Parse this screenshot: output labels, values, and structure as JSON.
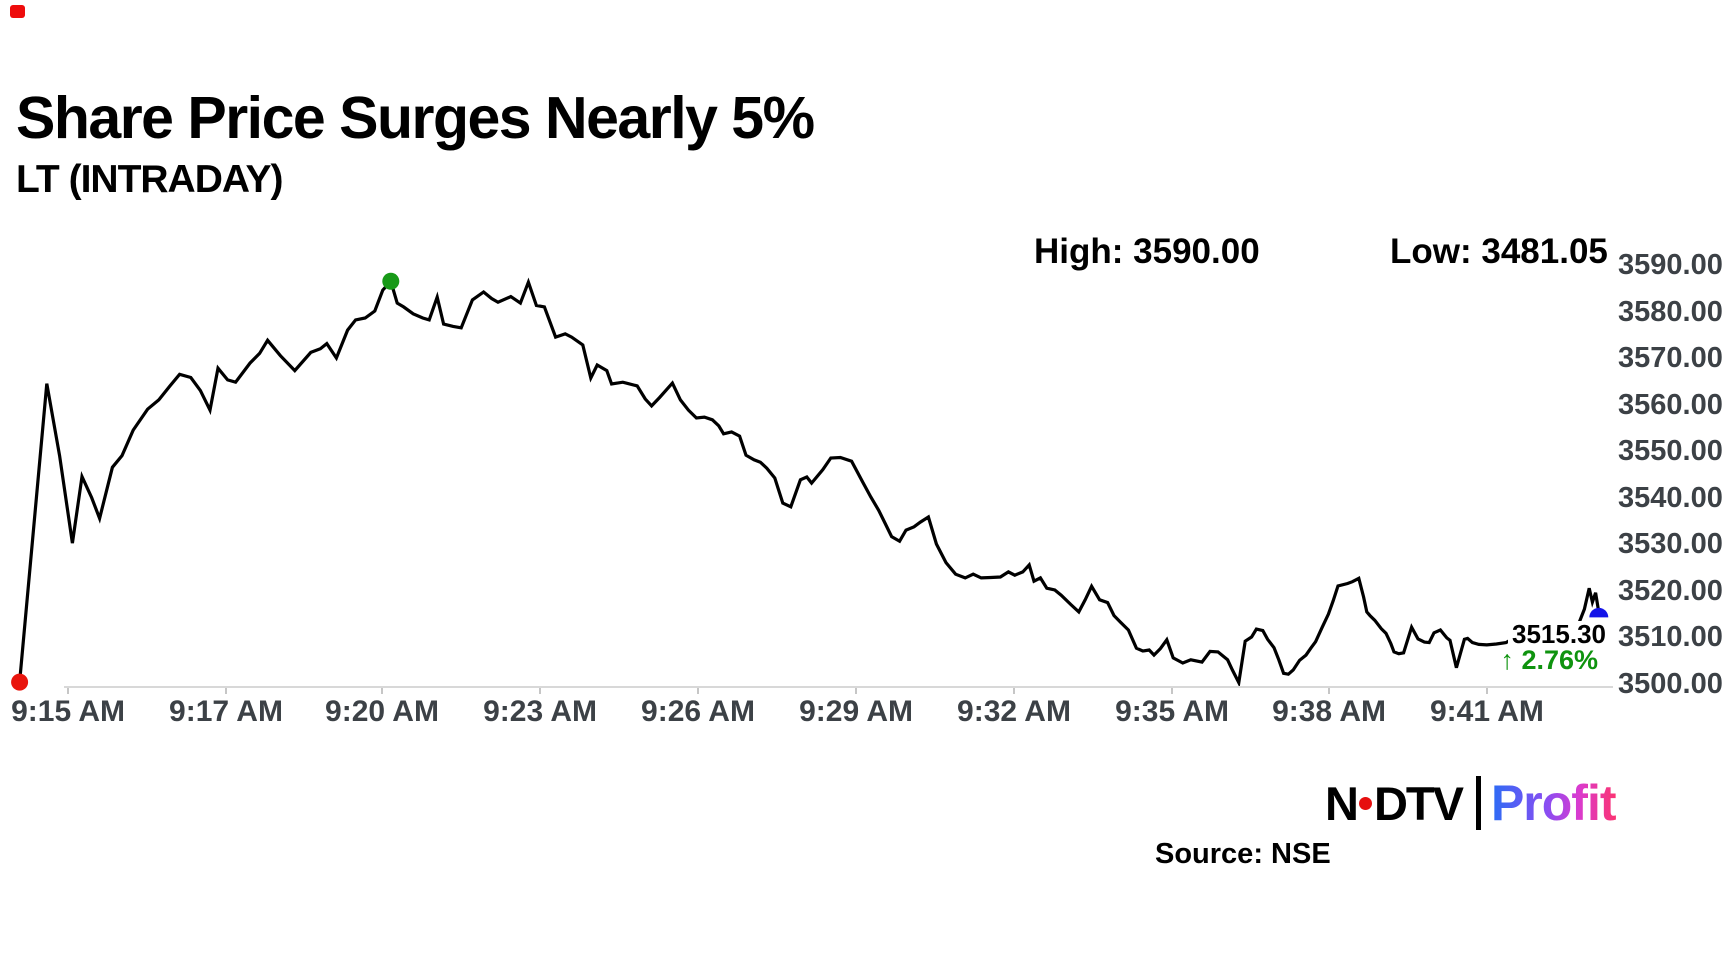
{
  "title": "Share Price Surges Nearly 5%",
  "subtitle": "LT (INTRADAY)",
  "stats": {
    "high_label": "High: 3590.00",
    "low_label": "Low: 3481.05"
  },
  "colors": {
    "line": "#000000",
    "axis_text": "#3c4146",
    "axis_line": "#d8d8d8",
    "marker_red": "#e9150d",
    "marker_green": "#189a18",
    "marker_blue": "#1414e8",
    "change_green": "#0f930f",
    "corner_red": "#ee0c0c",
    "profit_gradient": [
      "#2b6cf5",
      "#8a4df2",
      "#d93bd0",
      "#fb3472"
    ]
  },
  "chart_data": {
    "type": "line",
    "title": "LT intraday share price",
    "xlabel": "",
    "ylabel": "",
    "grid": false,
    "legend": false,
    "y_axis": {
      "min": 3500,
      "max": 3590,
      "ticks": [
        3590,
        3580,
        3570,
        3560,
        3550,
        3540,
        3530,
        3520,
        3510,
        3500
      ],
      "tick_format": "0.00",
      "position": "right"
    },
    "x_axis": {
      "ticks": [
        {
          "label": "9:15 AM",
          "pos": 0.0363
        },
        {
          "label": "9:17 AM",
          "pos": 0.135
        },
        {
          "label": "9:20 AM",
          "pos": 0.2325
        },
        {
          "label": "9:23 AM",
          "pos": 0.3313
        },
        {
          "label": "9:26 AM",
          "pos": 0.43
        },
        {
          "label": "9:29 AM",
          "pos": 0.5288
        },
        {
          "label": "9:32 AM",
          "pos": 0.6275
        },
        {
          "label": "9:35 AM",
          "pos": 0.7263
        },
        {
          "label": "9:38 AM",
          "pos": 0.8244
        },
        {
          "label": "9:41 AM",
          "pos": 0.9231
        }
      ]
    },
    "points": [
      [
        0.006,
        3500.3
      ],
      [
        0.023,
        3564.5
      ],
      [
        0.031,
        3549.0
      ],
      [
        0.039,
        3530.2
      ],
      [
        0.045,
        3544.5
      ],
      [
        0.051,
        3540.0
      ],
      [
        0.056,
        3535.5
      ],
      [
        0.064,
        3546.5
      ],
      [
        0.07,
        3549.0
      ],
      [
        0.077,
        3554.5
      ],
      [
        0.086,
        3559.0
      ],
      [
        0.093,
        3561.0
      ],
      [
        0.1,
        3564.0
      ],
      [
        0.106,
        3566.5
      ],
      [
        0.113,
        3565.8
      ],
      [
        0.119,
        3563.0
      ],
      [
        0.125,
        3558.8
      ],
      [
        0.13,
        3567.8
      ],
      [
        0.136,
        3565.3
      ],
      [
        0.141,
        3564.8
      ],
      [
        0.15,
        3568.9
      ],
      [
        0.156,
        3571.0
      ],
      [
        0.161,
        3573.8
      ],
      [
        0.169,
        3570.5
      ],
      [
        0.178,
        3567.3
      ],
      [
        0.188,
        3571.2
      ],
      [
        0.194,
        3572.0
      ],
      [
        0.198,
        3573.1
      ],
      [
        0.204,
        3570.0
      ],
      [
        0.211,
        3576.0
      ],
      [
        0.216,
        3578.2
      ],
      [
        0.222,
        3578.6
      ],
      [
        0.228,
        3580.1
      ],
      [
        0.233,
        3584.6
      ],
      [
        0.238,
        3586.5
      ],
      [
        0.242,
        3581.8
      ],
      [
        0.246,
        3581.0
      ],
      [
        0.252,
        3579.5
      ],
      [
        0.258,
        3578.6
      ],
      [
        0.262,
        3578.2
      ],
      [
        0.267,
        3583.1
      ],
      [
        0.271,
        3577.3
      ],
      [
        0.277,
        3576.8
      ],
      [
        0.282,
        3576.5
      ],
      [
        0.289,
        3582.5
      ],
      [
        0.296,
        3584.2
      ],
      [
        0.301,
        3582.8
      ],
      [
        0.305,
        3582.0
      ],
      [
        0.313,
        3583.2
      ],
      [
        0.319,
        3581.8
      ],
      [
        0.324,
        3586.3
      ],
      [
        0.329,
        3581.3
      ],
      [
        0.334,
        3581.0
      ],
      [
        0.341,
        3574.5
      ],
      [
        0.347,
        3575.2
      ],
      [
        0.351,
        3574.5
      ],
      [
        0.358,
        3572.8
      ],
      [
        0.363,
        3565.7
      ],
      [
        0.367,
        3568.5
      ],
      [
        0.373,
        3567.3
      ],
      [
        0.376,
        3564.4
      ],
      [
        0.383,
        3564.8
      ],
      [
        0.392,
        3564.0
      ],
      [
        0.397,
        3561.2
      ],
      [
        0.401,
        3559.7
      ],
      [
        0.406,
        3561.5
      ],
      [
        0.414,
        3564.6
      ],
      [
        0.419,
        3561.0
      ],
      [
        0.424,
        3558.8
      ],
      [
        0.429,
        3557.1
      ],
      [
        0.434,
        3557.3
      ],
      [
        0.439,
        3556.7
      ],
      [
        0.443,
        3555.4
      ],
      [
        0.446,
        3553.7
      ],
      [
        0.451,
        3554.1
      ],
      [
        0.456,
        3553.2
      ],
      [
        0.46,
        3549.1
      ],
      [
        0.465,
        3548.1
      ],
      [
        0.469,
        3547.6
      ],
      [
        0.473,
        3546.3
      ],
      [
        0.478,
        3544.2
      ],
      [
        0.483,
        3538.8
      ],
      [
        0.488,
        3538.0
      ],
      [
        0.494,
        3543.8
      ],
      [
        0.498,
        3544.4
      ],
      [
        0.501,
        3543.1
      ],
      [
        0.508,
        3546.0
      ],
      [
        0.513,
        3548.5
      ],
      [
        0.519,
        3548.6
      ],
      [
        0.526,
        3547.8
      ],
      [
        0.533,
        3543.3
      ],
      [
        0.538,
        3540.1
      ],
      [
        0.543,
        3537.2
      ],
      [
        0.547,
        3534.4
      ],
      [
        0.551,
        3531.6
      ],
      [
        0.556,
        3530.6
      ],
      [
        0.56,
        3533.0
      ],
      [
        0.565,
        3533.7
      ],
      [
        0.569,
        3534.7
      ],
      [
        0.574,
        3535.8
      ],
      [
        0.579,
        3530.0
      ],
      [
        0.585,
        3526.0
      ],
      [
        0.591,
        3523.5
      ],
      [
        0.597,
        3522.7
      ],
      [
        0.602,
        3523.5
      ],
      [
        0.607,
        3522.7
      ],
      [
        0.613,
        3522.8
      ],
      [
        0.619,
        3522.9
      ],
      [
        0.624,
        3524.0
      ],
      [
        0.628,
        3523.3
      ],
      [
        0.633,
        3524.0
      ],
      [
        0.637,
        3525.5
      ],
      [
        0.64,
        3522.0
      ],
      [
        0.644,
        3522.7
      ],
      [
        0.648,
        3520.5
      ],
      [
        0.653,
        3520.1
      ],
      [
        0.657,
        3519.0
      ],
      [
        0.663,
        3517.0
      ],
      [
        0.668,
        3515.4
      ],
      [
        0.672,
        3518.0
      ],
      [
        0.676,
        3520.9
      ],
      [
        0.681,
        3518.0
      ],
      [
        0.686,
        3517.4
      ],
      [
        0.69,
        3514.6
      ],
      [
        0.694,
        3513.2
      ],
      [
        0.699,
        3511.5
      ],
      [
        0.704,
        3507.6
      ],
      [
        0.708,
        3507.0
      ],
      [
        0.712,
        3507.2
      ],
      [
        0.715,
        3506.1
      ],
      [
        0.719,
        3507.5
      ],
      [
        0.723,
        3509.4
      ],
      [
        0.727,
        3505.5
      ],
      [
        0.733,
        3504.4
      ],
      [
        0.738,
        3505.1
      ],
      [
        0.745,
        3504.6
      ],
      [
        0.75,
        3506.9
      ],
      [
        0.755,
        3506.8
      ],
      [
        0.761,
        3505.1
      ],
      [
        0.764,
        3502.9
      ],
      [
        0.768,
        3500.2
      ],
      [
        0.772,
        3509.1
      ],
      [
        0.776,
        3510.0
      ],
      [
        0.779,
        3511.7
      ],
      [
        0.783,
        3511.4
      ],
      [
        0.786,
        3509.5
      ],
      [
        0.79,
        3507.7
      ],
      [
        0.793,
        3505.1
      ],
      [
        0.796,
        3502.2
      ],
      [
        0.799,
        3502.0
      ],
      [
        0.802,
        3502.9
      ],
      [
        0.806,
        3505.0
      ],
      [
        0.81,
        3506.1
      ],
      [
        0.813,
        3507.6
      ],
      [
        0.816,
        3509.0
      ],
      [
        0.82,
        3512.0
      ],
      [
        0.824,
        3514.9
      ],
      [
        0.827,
        3517.8
      ],
      [
        0.83,
        3521.0
      ],
      [
        0.836,
        3521.5
      ],
      [
        0.839,
        3521.9
      ],
      [
        0.843,
        3522.6
      ],
      [
        0.846,
        3518.6
      ],
      [
        0.848,
        3515.4
      ],
      [
        0.85,
        3514.6
      ],
      [
        0.853,
        3513.6
      ],
      [
        0.857,
        3511.8
      ],
      [
        0.86,
        3510.8
      ],
      [
        0.863,
        3508.6
      ],
      [
        0.865,
        3506.8
      ],
      [
        0.868,
        3506.4
      ],
      [
        0.871,
        3506.6
      ],
      [
        0.876,
        3512.1
      ],
      [
        0.88,
        3509.6
      ],
      [
        0.884,
        3508.9
      ],
      [
        0.887,
        3508.8
      ],
      [
        0.89,
        3510.9
      ],
      [
        0.894,
        3511.5
      ],
      [
        0.898,
        3509.8
      ],
      [
        0.9,
        3509.3
      ],
      [
        0.904,
        3503.4
      ],
      [
        0.909,
        3509.5
      ],
      [
        0.911,
        3509.7
      ],
      [
        0.914,
        3508.8
      ],
      [
        0.918,
        3508.4
      ],
      [
        0.923,
        3508.3
      ],
      [
        0.929,
        3508.5
      ],
      [
        0.935,
        3508.8
      ],
      [
        0.94,
        3509.8
      ],
      [
        0.945,
        3510.5
      ],
      [
        0.953,
        3511.0
      ],
      [
        0.963,
        3511.5
      ],
      [
        0.972,
        3512.0
      ],
      [
        0.98,
        3512.5
      ],
      [
        0.984,
        3516.0
      ],
      [
        0.987,
        3520.5
      ],
      [
        0.989,
        3517.5
      ],
      [
        0.991,
        3519.5
      ],
      [
        0.993,
        3515.3
      ]
    ],
    "markers": [
      {
        "name": "session-open-low-dot",
        "shape": "circle",
        "color": "#e9150d",
        "x": 0.006,
        "price": 3500.3
      },
      {
        "name": "session-high-dot",
        "shape": "circle",
        "color": "#189a18",
        "x": 0.238,
        "price": 3586.5
      },
      {
        "name": "last-price-dot",
        "shape": "half-dome",
        "color": "#1414e8",
        "x": 0.993,
        "price": 3515.3
      }
    ],
    "last_price": {
      "value": "3515.30",
      "change": "↑ 2.76%"
    }
  },
  "footer": {
    "logo_n": "N",
    "logo_dtv": "DTV",
    "logo_profit": "Profit",
    "source": "Source: NSE"
  }
}
